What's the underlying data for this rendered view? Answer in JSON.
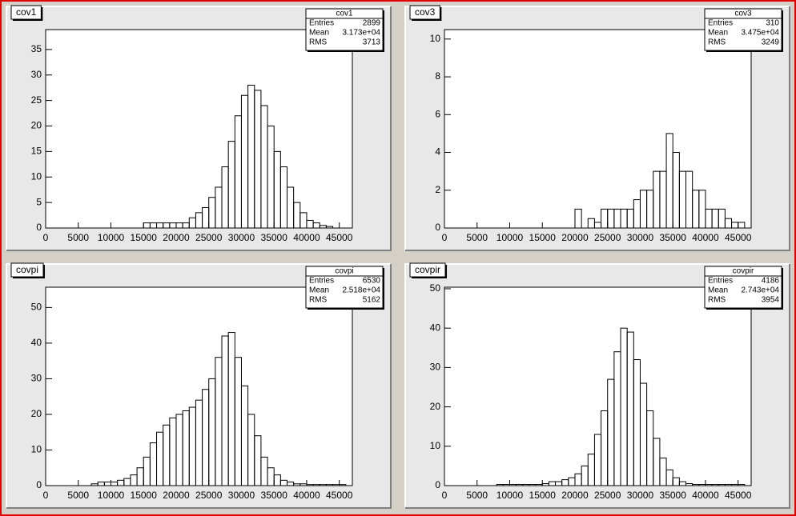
{
  "chart_data": [
    {
      "type": "histogram",
      "title": "cov1",
      "stats": {
        "name": "cov1",
        "rows": [
          [
            "Entries",
            "2899"
          ],
          [
            "Mean",
            "3.173e+04"
          ],
          [
            "RMS",
            "3713"
          ]
        ]
      },
      "bins": [
        0,
        1000,
        2000,
        3000,
        4000,
        5000,
        6000,
        7000,
        8000,
        9000,
        10000,
        11000,
        12000,
        13000,
        14000,
        15000,
        16000,
        17000,
        18000,
        19000,
        20000,
        21000,
        22000,
        23000,
        24000,
        25000,
        26000,
        27000,
        28000,
        29000,
        30000,
        31000,
        32000,
        33000,
        34000,
        35000,
        36000,
        37000,
        38000,
        39000,
        40000,
        41000,
        42000,
        43000,
        44000,
        45000,
        46000,
        47000
      ],
      "values": [
        0,
        0,
        0,
        0,
        0,
        0,
        0,
        0,
        0,
        0,
        0,
        0,
        0,
        0,
        0,
        1,
        1,
        1,
        1,
        1,
        1,
        1,
        2,
        3,
        4,
        6,
        8,
        12,
        17,
        22,
        26,
        28,
        27,
        24,
        20,
        15,
        12,
        8,
        5,
        3,
        1.5,
        1,
        0.5,
        0.3,
        0,
        0,
        0
      ],
      "color": "#000000",
      "xlim": [
        0,
        47000
      ],
      "xticks": [
        0,
        5000,
        10000,
        15000,
        20000,
        25000,
        30000,
        35000,
        40000,
        45000
      ],
      "ylim": [
        0,
        38.9
      ],
      "yticks": [
        0,
        5,
        10,
        15,
        20,
        25,
        30,
        35
      ]
    },
    {
      "type": "histogram",
      "title": "cov3",
      "stats": {
        "name": "cov3",
        "rows": [
          [
            "Entries",
            "310"
          ],
          [
            "Mean",
            "3.475e+04"
          ],
          [
            "RMS",
            "3249"
          ]
        ]
      },
      "bins": [
        0,
        1000,
        2000,
        3000,
        4000,
        5000,
        6000,
        7000,
        8000,
        9000,
        10000,
        11000,
        12000,
        13000,
        14000,
        15000,
        16000,
        17000,
        18000,
        19000,
        20000,
        21000,
        22000,
        23000,
        24000,
        25000,
        26000,
        27000,
        28000,
        29000,
        30000,
        31000,
        32000,
        33000,
        34000,
        35000,
        36000,
        37000,
        38000,
        39000,
        40000,
        41000,
        42000,
        43000,
        44000,
        45000,
        46000,
        47000
      ],
      "values": [
        0,
        0,
        0,
        0,
        0,
        0,
        0,
        0,
        0,
        0,
        0,
        0,
        0,
        0,
        0,
        0,
        0,
        0,
        0,
        0,
        1,
        0,
        0.5,
        0.3,
        1,
        1,
        1,
        1,
        1,
        1.5,
        2,
        2,
        3,
        3,
        5,
        4,
        3,
        3,
        2,
        2,
        1,
        1,
        1,
        0.5,
        0.3,
        0.3,
        0
      ],
      "color": "#000000",
      "xlim": [
        0,
        47000
      ],
      "xticks": [
        0,
        5000,
        10000,
        15000,
        20000,
        25000,
        30000,
        35000,
        40000,
        45000
      ],
      "ylim": [
        0,
        10.5
      ],
      "yticks": [
        0,
        2,
        4,
        6,
        8,
        10
      ]
    },
    {
      "type": "histogram",
      "title": "covpi",
      "stats": {
        "name": "covpi",
        "rows": [
          [
            "Entries",
            "6530"
          ],
          [
            "Mean",
            "2.518e+04"
          ],
          [
            "RMS",
            "5162"
          ]
        ]
      },
      "bins": [
        0,
        1000,
        2000,
        3000,
        4000,
        5000,
        6000,
        7000,
        8000,
        9000,
        10000,
        11000,
        12000,
        13000,
        14000,
        15000,
        16000,
        17000,
        18000,
        19000,
        20000,
        21000,
        22000,
        23000,
        24000,
        25000,
        26000,
        27000,
        28000,
        29000,
        30000,
        31000,
        32000,
        33000,
        34000,
        35000,
        36000,
        37000,
        38000,
        39000,
        40000,
        41000,
        42000,
        43000,
        44000,
        45000,
        46000,
        47000
      ],
      "values": [
        0,
        0,
        0,
        0,
        0,
        0,
        0,
        0.5,
        1,
        1,
        1,
        1.5,
        2,
        3,
        5,
        8,
        12,
        15,
        17,
        19,
        20,
        21,
        22,
        24,
        27,
        30,
        36,
        42,
        43,
        36,
        28,
        20,
        14,
        8,
        5,
        3,
        1.5,
        1,
        0.5,
        0.5,
        0.3,
        0.3,
        0.3,
        0.3,
        0.3,
        0.3,
        0
      ],
      "color": "#000000",
      "xlim": [
        0,
        47000
      ],
      "xticks": [
        0,
        5000,
        10000,
        15000,
        20000,
        25000,
        30000,
        35000,
        40000,
        45000
      ],
      "ylim": [
        0,
        55.7
      ],
      "yticks": [
        0,
        10,
        20,
        30,
        40,
        50
      ]
    },
    {
      "type": "histogram",
      "title": "covpir",
      "stats": {
        "name": "covpir",
        "rows": [
          [
            "Entries",
            "4186"
          ],
          [
            "Mean",
            "2.743e+04"
          ],
          [
            "RMS",
            "3954"
          ]
        ]
      },
      "bins": [
        0,
        1000,
        2000,
        3000,
        4000,
        5000,
        6000,
        7000,
        8000,
        9000,
        10000,
        11000,
        12000,
        13000,
        14000,
        15000,
        16000,
        17000,
        18000,
        19000,
        20000,
        21000,
        22000,
        23000,
        24000,
        25000,
        26000,
        27000,
        28000,
        29000,
        30000,
        31000,
        32000,
        33000,
        34000,
        35000,
        36000,
        37000,
        38000,
        39000,
        40000,
        41000,
        42000,
        43000,
        44000,
        45000,
        46000,
        47000
      ],
      "values": [
        0,
        0,
        0,
        0,
        0,
        0,
        0,
        0,
        0.3,
        0.3,
        0.3,
        0.3,
        0.3,
        0.3,
        0.3,
        0.5,
        1,
        1,
        1.5,
        2,
        3,
        5,
        8,
        13,
        19,
        27,
        34,
        40,
        39,
        32,
        26,
        19,
        12,
        7,
        4,
        2,
        1,
        0.5,
        0.3,
        0.3,
        0.3,
        0.3,
        0.3,
        0.3,
        0.3,
        0.3,
        0
      ],
      "color": "#000000",
      "xlim": [
        0,
        47000
      ],
      "xticks": [
        0,
        5000,
        10000,
        15000,
        20000,
        25000,
        30000,
        35000,
        40000,
        45000
      ],
      "ylim": [
        0,
        50.4
      ],
      "yticks": [
        0,
        10,
        20,
        30,
        40,
        50
      ]
    }
  ]
}
